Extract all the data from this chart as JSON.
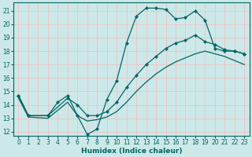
{
  "xlabel": "Humidex (Indice chaleur)",
  "bg_color": "#cde8e8",
  "line_color": "#006666",
  "grid_color": "#e8c8c8",
  "xlim": [
    -0.5,
    23.5
  ],
  "ylim": [
    11.7,
    21.6
  ],
  "yticks": [
    12,
    13,
    14,
    15,
    16,
    17,
    18,
    19,
    20,
    21
  ],
  "xticks": [
    0,
    1,
    2,
    3,
    4,
    5,
    6,
    7,
    8,
    9,
    10,
    11,
    12,
    13,
    14,
    15,
    16,
    17,
    18,
    19,
    20,
    21,
    22,
    23
  ],
  "series": [
    {
      "x": [
        0,
        1,
        3,
        4,
        5,
        6,
        7,
        8,
        9,
        10,
        11,
        12,
        13,
        14,
        15,
        16,
        17,
        18,
        19,
        20,
        21,
        22,
        23
      ],
      "y": [
        14.7,
        13.2,
        13.2,
        14.2,
        14.7,
        13.2,
        11.8,
        12.2,
        14.4,
        15.8,
        18.6,
        20.6,
        21.2,
        21.2,
        21.1,
        20.4,
        20.5,
        21.0,
        20.3,
        18.2,
        18.0,
        18.0,
        17.8
      ],
      "marker": "D",
      "markersize": 2.5,
      "linewidth": 0.9
    },
    {
      "x": [
        0,
        1,
        3,
        5,
        6,
        7,
        8,
        9,
        10,
        11,
        12,
        13,
        14,
        15,
        16,
        17,
        18,
        19,
        20,
        21,
        22,
        23
      ],
      "y": [
        14.7,
        13.2,
        13.2,
        14.5,
        14.0,
        13.2,
        13.2,
        13.5,
        14.2,
        15.3,
        16.2,
        17.0,
        17.6,
        18.2,
        18.6,
        18.8,
        19.2,
        18.7,
        18.5,
        18.1,
        18.0,
        17.8
      ],
      "marker": "D",
      "markersize": 2.5,
      "linewidth": 0.9
    },
    {
      "x": [
        0,
        1,
        3,
        5,
        6,
        7,
        8,
        9,
        10,
        11,
        12,
        13,
        14,
        15,
        16,
        17,
        18,
        19,
        20,
        21,
        22,
        23
      ],
      "y": [
        14.5,
        13.1,
        13.0,
        14.2,
        13.2,
        12.8,
        12.9,
        13.1,
        13.5,
        14.2,
        15.0,
        15.7,
        16.3,
        16.8,
        17.2,
        17.5,
        17.8,
        18.0,
        17.8,
        17.6,
        17.3,
        17.0
      ],
      "marker": null,
      "markersize": 0,
      "linewidth": 0.9
    }
  ]
}
